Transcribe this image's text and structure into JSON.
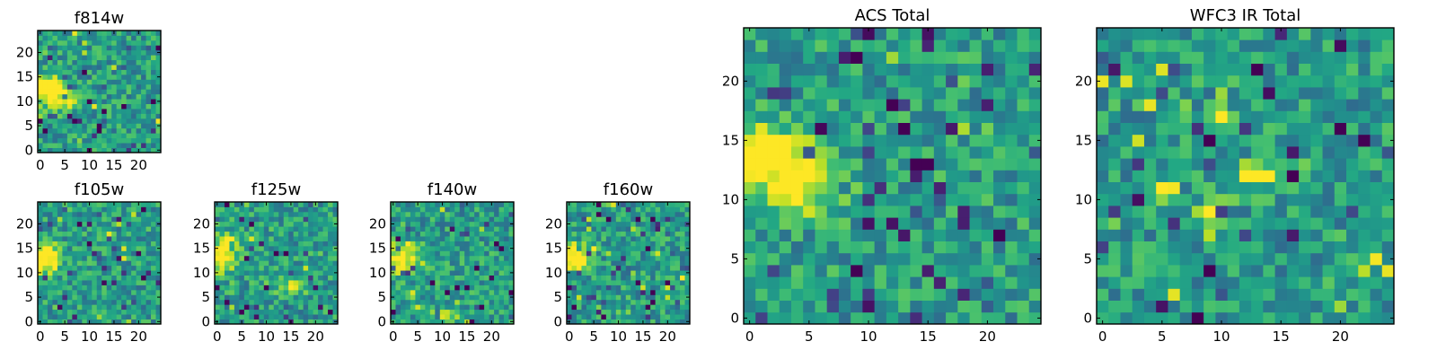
{
  "figure": {
    "description_colormap": "viridis"
  },
  "chart_data": [
    {
      "type": "heatmap",
      "title": "f814w",
      "grid_size": 25,
      "xlim": [
        0,
        24
      ],
      "ylim": [
        0,
        24
      ],
      "xticks": [
        0,
        5,
        10,
        15,
        20
      ],
      "yticks": [
        0,
        5,
        10,
        15,
        20
      ],
      "colormap": "viridis",
      "seed": 11,
      "hotspots": [
        {
          "x": 1,
          "y": 13,
          "sx": 2.5,
          "sy": 1.5,
          "amp": 0.75
        },
        {
          "x": 4,
          "y": 10,
          "sx": 2.5,
          "sy": 1.5,
          "amp": 0.45
        }
      ]
    },
    {
      "type": "heatmap",
      "title": "f105w",
      "grid_size": 25,
      "xlim": [
        0,
        24
      ],
      "ylim": [
        0,
        24
      ],
      "xticks": [
        0,
        5,
        10,
        15,
        20
      ],
      "yticks": [
        0,
        5,
        10,
        15,
        20
      ],
      "colormap": "viridis",
      "seed": 21,
      "hotspots": [
        {
          "x": 1,
          "y": 13,
          "sx": 2,
          "sy": 2,
          "amp": 0.7
        }
      ]
    },
    {
      "type": "heatmap",
      "title": "f125w",
      "grid_size": 25,
      "xlim": [
        0,
        24
      ],
      "ylim": [
        0,
        24
      ],
      "xticks": [
        0,
        5,
        10,
        15,
        20
      ],
      "yticks": [
        0,
        5,
        10,
        15,
        20
      ],
      "colormap": "viridis",
      "seed": 31,
      "hotspots": [
        {
          "x": 1,
          "y": 14,
          "sx": 2,
          "sy": 2.5,
          "amp": 0.6
        },
        {
          "x": 15,
          "y": 7,
          "sx": 2,
          "sy": 1,
          "amp": 0.4
        }
      ]
    },
    {
      "type": "heatmap",
      "title": "f140w",
      "grid_size": 25,
      "xlim": [
        0,
        24
      ],
      "ylim": [
        0,
        24
      ],
      "xticks": [
        0,
        5,
        10,
        15,
        20
      ],
      "yticks": [
        0,
        5,
        10,
        15,
        20
      ],
      "colormap": "viridis",
      "seed": 41,
      "hotspots": [
        {
          "x": 2,
          "y": 13,
          "sx": 3,
          "sy": 2,
          "amp": 0.55
        },
        {
          "x": 10,
          "y": 1,
          "sx": 2,
          "sy": 1,
          "amp": 0.4
        }
      ]
    },
    {
      "type": "heatmap",
      "title": "f160w",
      "grid_size": 25,
      "xlim": [
        0,
        24
      ],
      "ylim": [
        0,
        24
      ],
      "xticks": [
        0,
        5,
        10,
        15,
        20
      ],
      "yticks": [
        0,
        5,
        10,
        15,
        20
      ],
      "colormap": "viridis",
      "seed": 51,
      "hotspots": [
        {
          "x": 1,
          "y": 13,
          "sx": 2,
          "sy": 2,
          "amp": 0.7
        }
      ]
    },
    {
      "type": "heatmap",
      "title": "ACS Total",
      "grid_size": 25,
      "xlim": [
        0,
        24
      ],
      "ylim": [
        0,
        24
      ],
      "xticks": [
        0,
        5,
        10,
        15,
        20
      ],
      "yticks": [
        0,
        5,
        10,
        15,
        20
      ],
      "colormap": "viridis",
      "seed": 61,
      "hotspots": [
        {
          "x": 1,
          "y": 14,
          "sx": 2.5,
          "sy": 1.5,
          "amp": 0.75
        },
        {
          "x": 4,
          "y": 11,
          "sx": 2.5,
          "sy": 1.5,
          "amp": 0.5
        }
      ]
    },
    {
      "type": "heatmap",
      "title": "WFC3 IR Total",
      "grid_size": 25,
      "xlim": [
        0,
        24
      ],
      "ylim": [
        0,
        24
      ],
      "xticks": [
        0,
        5,
        10,
        15,
        20
      ],
      "yticks": [
        0,
        5,
        10,
        15,
        20
      ],
      "colormap": "viridis",
      "seed": 71,
      "hotspots": [
        {
          "x": 10,
          "y": 17,
          "sx": 0.8,
          "sy": 0.5,
          "amp": 0.6
        },
        {
          "x": 12,
          "y": 12,
          "sx": 1.2,
          "sy": 0.6,
          "amp": 0.6
        },
        {
          "x": 9,
          "y": 9,
          "sx": 0.8,
          "sy": 0.6,
          "amp": 0.6
        },
        {
          "x": 5,
          "y": 11,
          "sx": 0.8,
          "sy": 0.5,
          "amp": 0.5
        }
      ]
    }
  ]
}
